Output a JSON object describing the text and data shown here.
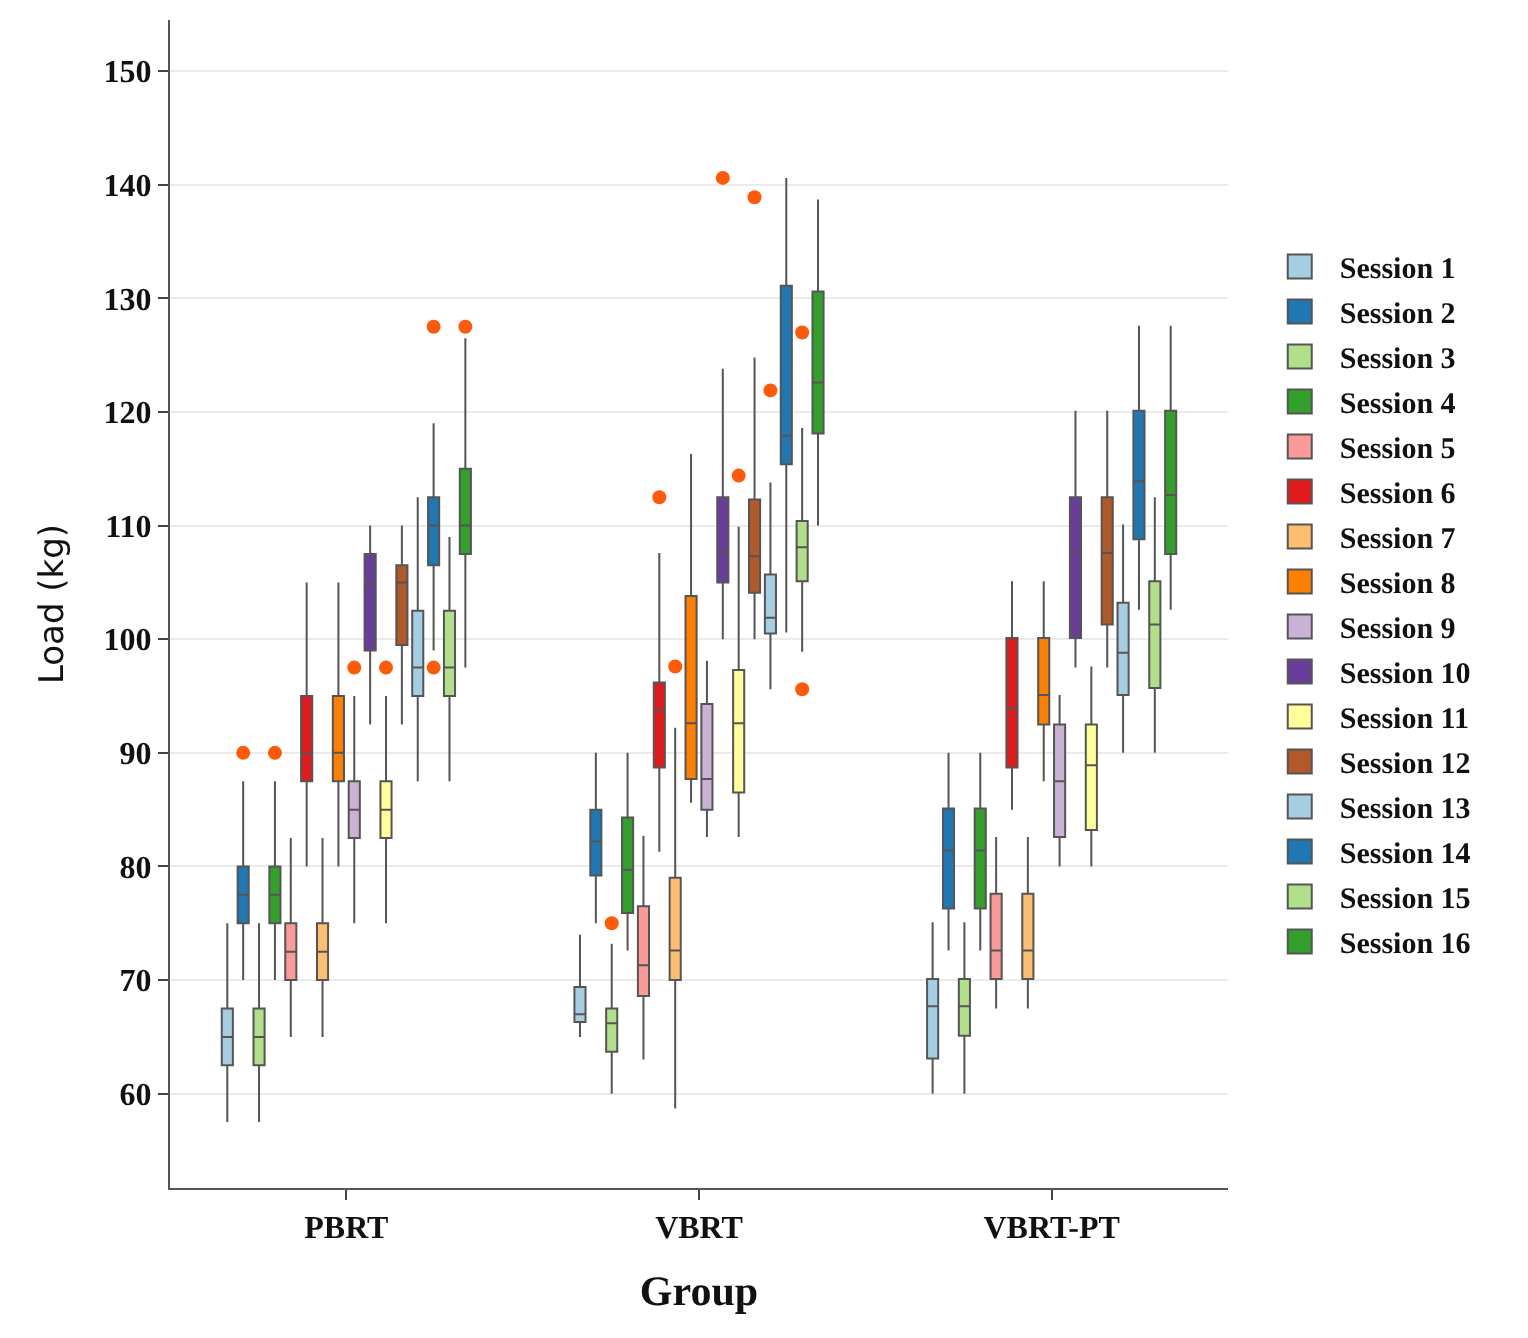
{
  "chart_data": {
    "type": "box",
    "xlabel": "Group",
    "ylabel": "Load (kg)",
    "categories": [
      "PBRT",
      "VBRT",
      "VBRT-PT"
    ],
    "ylim": [
      51.7,
      154.5
    ],
    "yticks": [
      60,
      70,
      80,
      90,
      100,
      110,
      120,
      130,
      140,
      150
    ],
    "grid": "y",
    "legend": "right",
    "series": [
      {
        "name": "Session 1",
        "color": "#a6cee3",
        "boxes": [
          {
            "low": 57.5,
            "q1": 62.5,
            "median": 65,
            "q3": 67.5,
            "high": 75
          },
          {
            "low": 65,
            "q1": 66.3,
            "median": 67,
            "q3": 69.4,
            "high": 74
          },
          {
            "low": 60,
            "q1": 63.1,
            "median": 67.7,
            "q3": 70.1,
            "high": 75.1
          }
        ]
      },
      {
        "name": "Session 2",
        "color": "#1f78b4",
        "boxes": [
          {
            "low": 70,
            "q1": 75,
            "median": 77.5,
            "q3": 80,
            "high": 87.5,
            "outliers": [
              90
            ]
          },
          {
            "low": 75,
            "q1": 79.2,
            "median": 82.2,
            "q3": 85,
            "high": 90
          },
          {
            "low": 72.6,
            "q1": 76.3,
            "median": 81.4,
            "q3": 85.1,
            "high": 90
          }
        ]
      },
      {
        "name": "Session 3",
        "color": "#b2df8a",
        "boxes": [
          {
            "low": 57.5,
            "q1": 62.5,
            "median": 65,
            "q3": 67.5,
            "high": 75
          },
          {
            "low": 60,
            "q1": 63.7,
            "median": 66.2,
            "q3": 67.5,
            "high": 73.2,
            "outliers": [
              75
            ]
          },
          {
            "low": 60,
            "q1": 65.1,
            "median": 67.7,
            "q3": 70.1,
            "high": 75.1
          }
        ]
      },
      {
        "name": "Session 4",
        "color": "#33a02c",
        "boxes": [
          {
            "low": 70,
            "q1": 75,
            "median": 77.5,
            "q3": 80,
            "high": 87.5,
            "outliers": [
              90
            ]
          },
          {
            "low": 72.6,
            "q1": 75.9,
            "median": 79.7,
            "q3": 84.3,
            "high": 90
          },
          {
            "low": 72.6,
            "q1": 76.3,
            "median": 81.4,
            "q3": 85.1,
            "high": 90
          }
        ]
      },
      {
        "name": "Session 5",
        "color": "#fb9a99",
        "boxes": [
          {
            "low": 65,
            "q1": 70,
            "median": 72.5,
            "q3": 75,
            "high": 82.5
          },
          {
            "low": 63,
            "q1": 68.6,
            "median": 71.3,
            "q3": 76.5,
            "high": 82.7
          },
          {
            "low": 67.5,
            "q1": 70.1,
            "median": 72.6,
            "q3": 77.6,
            "high": 82.6
          }
        ]
      },
      {
        "name": "Session 6",
        "color": "#e31a1c",
        "boxes": [
          {
            "low": 80,
            "q1": 87.5,
            "median": 90,
            "q3": 95,
            "high": 105
          },
          {
            "low": 81.3,
            "q1": 88.7,
            "median": 93.8,
            "q3": 96.2,
            "high": 107.6,
            "outliers": [
              112.5
            ]
          },
          {
            "low": 85,
            "q1": 88.7,
            "median": 93.9,
            "q3": 100.1,
            "high": 105.1
          }
        ]
      },
      {
        "name": "Session 7",
        "color": "#fdbf6f",
        "boxes": [
          {
            "low": 65,
            "q1": 70,
            "median": 72.5,
            "q3": 75,
            "high": 82.5
          },
          {
            "low": 58.7,
            "q1": 70,
            "median": 72.6,
            "q3": 79,
            "high": 92.2,
            "outliers": [
              97.6
            ]
          },
          {
            "low": 67.5,
            "q1": 70.1,
            "median": 72.6,
            "q3": 77.6,
            "high": 82.6
          }
        ]
      },
      {
        "name": "Session 8",
        "color": "#ff7f00",
        "boxes": [
          {
            "low": 80,
            "q1": 87.5,
            "median": 90,
            "q3": 95,
            "high": 105
          },
          {
            "low": 85.6,
            "q1": 87.7,
            "median": 92.6,
            "q3": 103.8,
            "high": 116.3
          },
          {
            "low": 87.5,
            "q1": 92.5,
            "median": 95.1,
            "q3": 100.1,
            "high": 105.1
          }
        ]
      },
      {
        "name": "Session 9",
        "color": "#cab2d6",
        "boxes": [
          {
            "low": 75,
            "q1": 82.5,
            "median": 85,
            "q3": 87.5,
            "high": 95,
            "outliers": [
              97.5
            ]
          },
          {
            "low": 82.6,
            "q1": 85,
            "median": 87.7,
            "q3": 94.3,
            "high": 98.1
          },
          {
            "low": 80,
            "q1": 82.6,
            "median": 87.5,
            "q3": 92.5,
            "high": 95.1
          }
        ]
      },
      {
        "name": "Session 10",
        "color": "#6a3d9a",
        "boxes": [
          {
            "low": 92.5,
            "q1": 99,
            "median": 105,
            "q3": 107.5,
            "high": 110
          },
          {
            "low": 100,
            "q1": 105,
            "median": 107.6,
            "q3": 112.5,
            "high": 123.8,
            "outliers": [
              140.6
            ]
          },
          {
            "low": 97.5,
            "q1": 100.1,
            "median": 107.6,
            "q3": 112.5,
            "high": 120.1
          }
        ]
      },
      {
        "name": "Session 11",
        "color": "#ffff99",
        "boxes": [
          {
            "low": 75,
            "q1": 82.5,
            "median": 85,
            "q3": 87.5,
            "high": 95,
            "outliers": [
              97.5
            ]
          },
          {
            "low": 82.6,
            "q1": 86.5,
            "median": 92.6,
            "q3": 97.3,
            "high": 109.9,
            "outliers": [
              114.4
            ]
          },
          {
            "low": 80,
            "q1": 83.2,
            "median": 88.9,
            "q3": 92.5,
            "high": 97.6
          }
        ]
      },
      {
        "name": "Session 12",
        "color": "#b15928",
        "boxes": [
          {
            "low": 92.5,
            "q1": 99.5,
            "median": 105,
            "q3": 106.5,
            "high": 110
          },
          {
            "low": 100,
            "q1": 104.1,
            "median": 107.3,
            "q3": 112.3,
            "high": 124.8,
            "outliers": [
              138.9
            ]
          },
          {
            "low": 97.5,
            "q1": 101.3,
            "median": 107.6,
            "q3": 112.5,
            "high": 120.1
          }
        ]
      },
      {
        "name": "Session 13",
        "color": "#a6cee3",
        "boxes": [
          {
            "low": 87.5,
            "q1": 95,
            "median": 97.5,
            "q3": 102.5,
            "high": 112.5
          },
          {
            "low": 95.6,
            "q1": 100.5,
            "median": 101.9,
            "q3": 105.7,
            "high": 113.8,
            "outliers": [
              121.9
            ]
          },
          {
            "low": 90,
            "q1": 95.1,
            "median": 98.8,
            "q3": 103.2,
            "high": 110.1
          }
        ]
      },
      {
        "name": "Session 14",
        "color": "#1f78b4",
        "boxes": [
          {
            "low": 99,
            "q1": 106.5,
            "median": 110,
            "q3": 112.5,
            "high": 119,
            "outliers": [
              97.5,
              127.5
            ]
          },
          {
            "low": 100.6,
            "q1": 115.4,
            "median": 117.9,
            "q3": 131.1,
            "high": 140.6
          },
          {
            "low": 102.6,
            "q1": 108.8,
            "median": 113.9,
            "q3": 120.1,
            "high": 127.6
          }
        ]
      },
      {
        "name": "Session 15",
        "color": "#b2df8a",
        "boxes": [
          {
            "low": 87.5,
            "q1": 95,
            "median": 97.5,
            "q3": 102.5,
            "high": 109
          },
          {
            "low": 98.9,
            "q1": 105.1,
            "median": 108.1,
            "q3": 110.4,
            "high": 118.6,
            "outliers": [
              95.6,
              127
            ]
          },
          {
            "low": 90,
            "q1": 95.7,
            "median": 101.3,
            "q3": 105.1,
            "high": 112.5
          }
        ]
      },
      {
        "name": "Session 16",
        "color": "#33a02c",
        "boxes": [
          {
            "low": 97.5,
            "q1": 107.5,
            "median": 110,
            "q3": 115,
            "high": 126.5,
            "outliers": [
              127.5
            ]
          },
          {
            "low": 110,
            "q1": 118.1,
            "median": 122.6,
            "q3": 130.6,
            "high": 138.7
          },
          {
            "low": 102.6,
            "q1": 107.5,
            "median": 112.7,
            "q3": 120.1,
            "high": 127.6
          }
        ]
      }
    ]
  }
}
